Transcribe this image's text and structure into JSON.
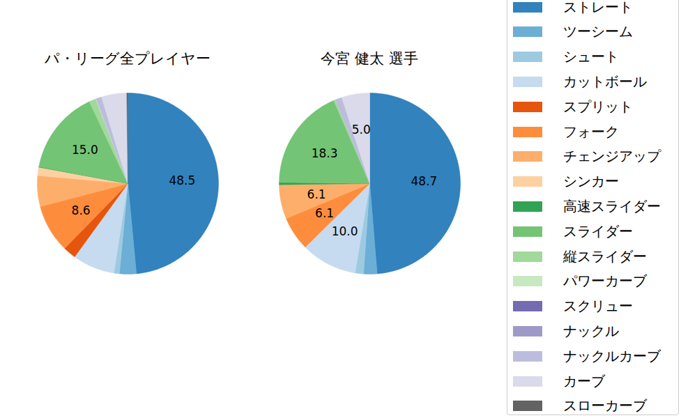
{
  "chart_data": [
    {
      "type": "pie",
      "title": "パ・リーグ全プレイヤー",
      "categories": [
        "ストレート",
        "ツーシーム",
        "シュート",
        "カットボール",
        "スプリット",
        "フォーク",
        "チェンジアップ",
        "シンカー",
        "高速スライダー",
        "スライダー",
        "縦スライダー",
        "パワーカーブ",
        "スクリュー",
        "ナックル",
        "ナックルカーブ",
        "カーブ",
        "スローカーブ"
      ],
      "values": [
        48.5,
        3.0,
        1.0,
        7.5,
        2.3,
        8.6,
        5.5,
        1.5,
        0.1,
        15.0,
        1.2,
        0.1,
        0,
        0,
        1.0,
        4.5,
        0.2
      ],
      "value_labels": [
        "48.5",
        null,
        null,
        null,
        null,
        "8.6",
        null,
        null,
        null,
        "15.0",
        null,
        null,
        null,
        null,
        null,
        null,
        null
      ],
      "colors": [
        "#3182bd",
        "#6baed6",
        "#9ecae1",
        "#c6dbef",
        "#e6550d",
        "#fd8d3c",
        "#fdae6b",
        "#fdd0a2",
        "#31a354",
        "#74c476",
        "#a1d99b",
        "#c7e9c0",
        "#756bb1",
        "#9e9ac8",
        "#bcbddc",
        "#dadaeb",
        "#636363"
      ],
      "data_labels": true,
      "legend": "right"
    },
    {
      "type": "pie",
      "title": "今宮 健太  選手",
      "categories": [
        "ストレート",
        "ツーシーム",
        "シュート",
        "カットボール",
        "スプリット",
        "フォーク",
        "チェンジアップ",
        "シンカー",
        "高速スライダー",
        "スライダー",
        "縦スライダー",
        "パワーカーブ",
        "スクリュー",
        "ナックル",
        "ナックルカーブ",
        "カーブ",
        "スローカーブ"
      ],
      "values": [
        48.7,
        2.4,
        1.5,
        10.0,
        0,
        6.1,
        6.1,
        0,
        0.4,
        18.3,
        0.3,
        0,
        0,
        0,
        1.2,
        5.0,
        0
      ],
      "value_labels": [
        "48.7",
        null,
        null,
        "10.0",
        null,
        "6.1",
        "6.1",
        null,
        null,
        "18.3",
        null,
        null,
        null,
        null,
        null,
        "5.0",
        null
      ],
      "colors": [
        "#3182bd",
        "#6baed6",
        "#9ecae1",
        "#c6dbef",
        "#e6550d",
        "#fd8d3c",
        "#fdae6b",
        "#fdd0a2",
        "#31a354",
        "#74c476",
        "#a1d99b",
        "#c7e9c0",
        "#756bb1",
        "#9e9ac8",
        "#bcbddc",
        "#dadaeb",
        "#636363"
      ],
      "data_labels": true,
      "legend": "right"
    }
  ]
}
